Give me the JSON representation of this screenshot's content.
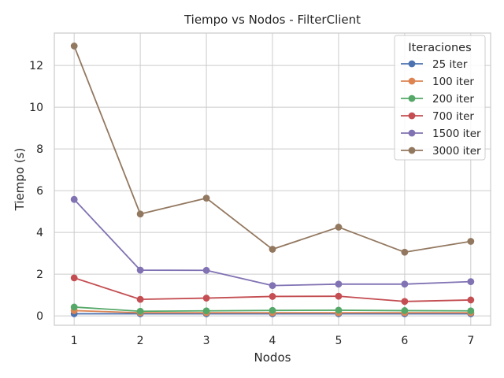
{
  "chart_data": {
    "type": "line",
    "title": "Tiempo vs Nodos - FilterClient",
    "xlabel": "Nodos",
    "ylabel": "Tiempo (s)",
    "x": [
      1,
      2,
      3,
      4,
      5,
      6,
      7
    ],
    "x_ticks": [
      "1",
      "2",
      "3",
      "4",
      "5",
      "6",
      "7"
    ],
    "y_ticks": [
      "0",
      "2",
      "4",
      "6",
      "8",
      "10",
      "12"
    ],
    "xlim": [
      0.7,
      7.3
    ],
    "ylim": [
      -0.45,
      13.55
    ],
    "grid": true,
    "legend": {
      "title": "Iteraciones",
      "placement": "top-right"
    },
    "series": [
      {
        "name": "25 iter",
        "color": "#4c72b0",
        "values": [
          0.1,
          0.1,
          0.1,
          0.1,
          0.1,
          0.1,
          0.1
        ]
      },
      {
        "name": "100 iter",
        "color": "#dd8452",
        "values": [
          0.25,
          0.15,
          0.15,
          0.15,
          0.15,
          0.15,
          0.15
        ]
      },
      {
        "name": "200 iter",
        "color": "#55a868",
        "values": [
          0.42,
          0.22,
          0.24,
          0.26,
          0.27,
          0.25,
          0.24
        ]
      },
      {
        "name": "700 iter",
        "color": "#c44e52",
        "values": [
          1.82,
          0.79,
          0.85,
          0.93,
          0.94,
          0.69,
          0.76
        ]
      },
      {
        "name": "1500 iter",
        "color": "#8172b3",
        "values": [
          5.58,
          2.19,
          2.18,
          1.45,
          1.52,
          1.52,
          1.64
        ]
      },
      {
        "name": "3000 iter",
        "color": "#937860",
        "values": [
          12.93,
          4.88,
          5.64,
          3.19,
          4.25,
          3.05,
          3.57
        ]
      }
    ]
  }
}
